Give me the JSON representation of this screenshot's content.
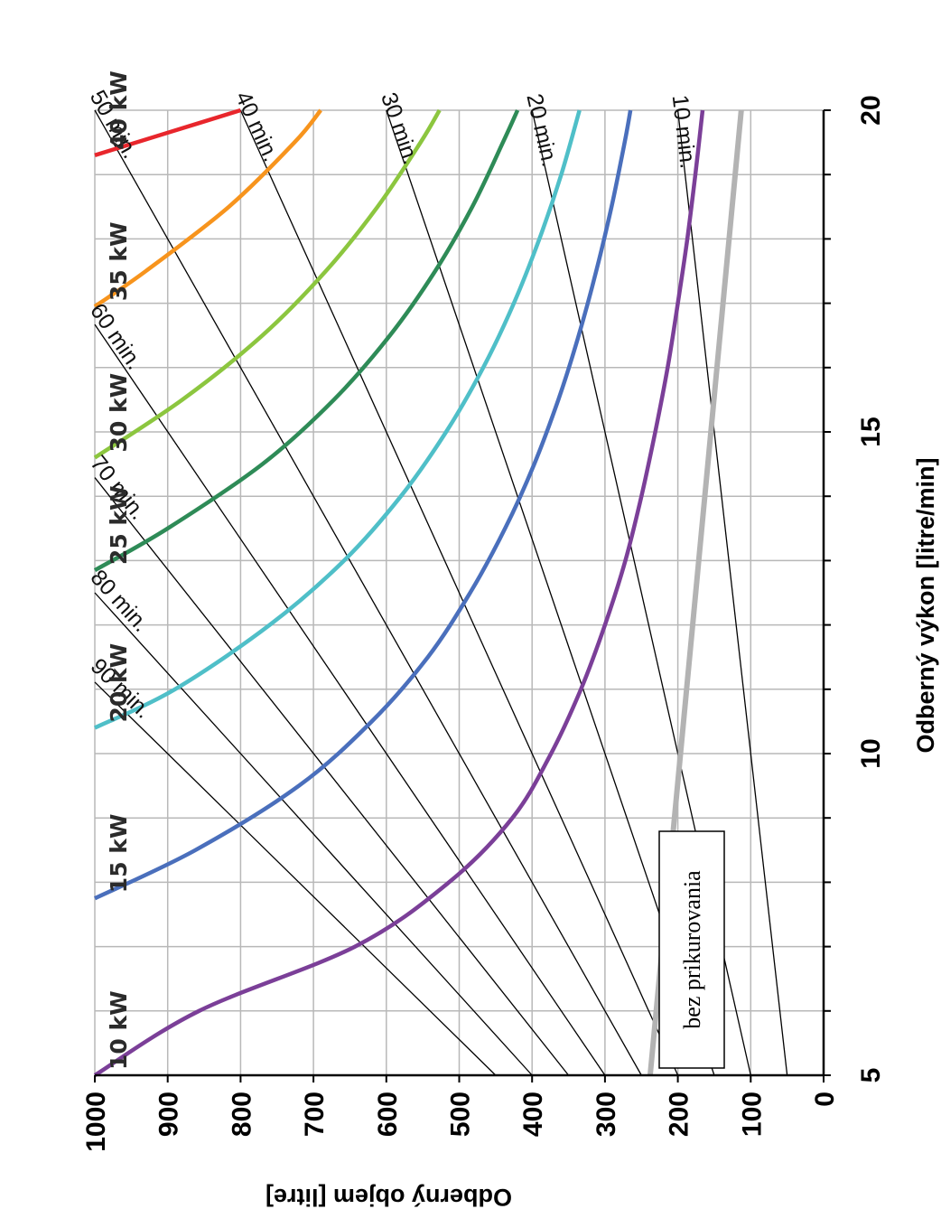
{
  "chart_data": {
    "type": "line",
    "xlabel": "Odberný výkon [litre/min]",
    "ylabel": "Odberný objem [litre]",
    "xlim": [
      5,
      20
    ],
    "ylim": [
      0,
      1000
    ],
    "x_ticks": [
      "5",
      "10",
      "15",
      "20"
    ],
    "y_ticks": [
      "1000",
      "900",
      "800",
      "700",
      "600",
      "500",
      "400",
      "300",
      "200",
      "100",
      "0"
    ],
    "grid": true,
    "power_curves": [
      {
        "label": "10 kW",
        "color": "#7b3f98",
        "points": [
          [
            5.0,
            1000
          ],
          [
            6.0,
            857
          ],
          [
            7.0,
            643
          ],
          [
            8.0,
            514
          ],
          [
            9.0,
            427
          ],
          [
            10.0,
            374
          ],
          [
            11.0,
            333
          ],
          [
            12.0,
            300
          ],
          [
            13.0,
            272
          ],
          [
            14.0,
            250
          ],
          [
            15.0,
            231
          ],
          [
            16.0,
            214
          ],
          [
            17.0,
            200
          ],
          [
            18.0,
            187
          ],
          [
            19.0,
            176
          ],
          [
            20.0,
            166
          ]
        ]
      },
      {
        "label": "15 kW",
        "color": "#4a6fbc",
        "points": [
          [
            7.75,
            1000
          ],
          [
            8.5,
            862
          ],
          [
            9.5,
            720
          ],
          [
            10.5,
            620
          ],
          [
            11.5,
            543
          ],
          [
            12.5,
            485
          ],
          [
            13.5,
            437
          ],
          [
            14.5,
            397
          ],
          [
            15.5,
            364
          ],
          [
            16.5,
            336
          ],
          [
            17.5,
            312
          ],
          [
            18.5,
            291
          ],
          [
            19.5,
            273
          ],
          [
            20.0,
            265
          ]
        ]
      },
      {
        "label": "20 kW",
        "color": "#4fbfc8",
        "points": [
          [
            10.4,
            1000
          ],
          [
            11.0,
            890
          ],
          [
            12.0,
            760
          ],
          [
            13.0,
            658
          ],
          [
            14.0,
            580
          ],
          [
            15.0,
            518
          ],
          [
            16.0,
            467
          ],
          [
            17.0,
            425
          ],
          [
            18.0,
            390
          ],
          [
            19.0,
            360
          ],
          [
            20.0,
            335
          ]
        ]
      },
      {
        "label": "25 kW",
        "color": "#2e8b57",
        "points": [
          [
            12.85,
            1000
          ],
          [
            13.5,
            900
          ],
          [
            14.5,
            770
          ],
          [
            15.5,
            672
          ],
          [
            16.5,
            595
          ],
          [
            17.5,
            533
          ],
          [
            18.5,
            482
          ],
          [
            19.5,
            440
          ],
          [
            20.0,
            420
          ]
        ]
      },
      {
        "label": "30 kW",
        "color": "#8cc63f",
        "points": [
          [
            14.6,
            1000
          ],
          [
            15.5,
            880
          ],
          [
            16.5,
            770
          ],
          [
            17.5,
            683
          ],
          [
            18.5,
            612
          ],
          [
            19.5,
            553
          ],
          [
            20.0,
            527
          ]
        ]
      },
      {
        "label": "35 kW",
        "color": "#f7941d",
        "points": [
          [
            16.95,
            1000
          ],
          [
            17.5,
            930
          ],
          [
            18.5,
            816
          ],
          [
            19.5,
            726
          ],
          [
            20.0,
            690
          ]
        ]
      },
      {
        "label": "40 kW",
        "color": "#e8262c",
        "points": [
          [
            19.3,
            1000
          ],
          [
            19.65,
            900
          ],
          [
            20.0,
            800
          ]
        ]
      }
    ],
    "time_lines": [
      {
        "label": "10 min.",
        "points": [
          [
            5.0,
            50
          ],
          [
            20.0,
            200
          ]
        ]
      },
      {
        "label": "20 min.",
        "points": [
          [
            5.0,
            100
          ],
          [
            20.0,
            400
          ]
        ]
      },
      {
        "label": "30 min.",
        "points": [
          [
            5.0,
            150
          ],
          [
            20.0,
            600
          ]
        ]
      },
      {
        "label": "40 min.",
        "points": [
          [
            5.0,
            200
          ],
          [
            20.0,
            800
          ]
        ]
      },
      {
        "label": "50 min.",
        "points": [
          [
            5.0,
            250
          ],
          [
            20.0,
            1000
          ]
        ]
      },
      {
        "label": "60 min.",
        "points": [
          [
            5.0,
            300
          ],
          [
            16.67,
            1000
          ]
        ]
      },
      {
        "label": "70 min.",
        "points": [
          [
            5.0,
            350
          ],
          [
            14.29,
            1000
          ]
        ]
      },
      {
        "label": "80 min.",
        "points": [
          [
            5.0,
            400
          ],
          [
            12.5,
            1000
          ]
        ]
      },
      {
        "label": "90 min.",
        "points": [
          [
            5.0,
            450
          ],
          [
            11.11,
            1000
          ]
        ]
      }
    ],
    "reference_line": {
      "label": "bez prikurovania",
      "color": "#b3b3b3",
      "points": [
        [
          5.0,
          238
        ],
        [
          20.0,
          113
        ]
      ]
    }
  }
}
